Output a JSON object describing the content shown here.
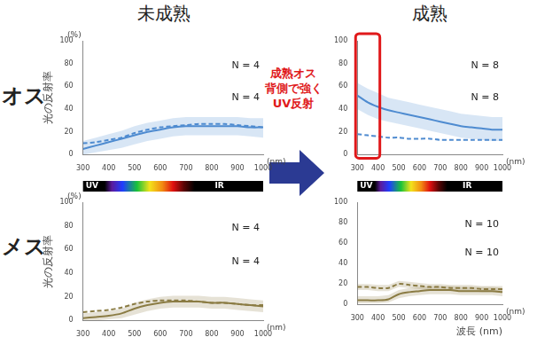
{
  "column_titles": [
    "未成熟",
    "成熟"
  ],
  "row_labels": [
    "オス",
    "メス"
  ],
  "annotation": [
    "成熟オス",
    "背側で強く",
    "UV反射"
  ],
  "chart_data": [
    {
      "type": "line",
      "ylabel": "光の反射率",
      "y_unit": "(%)",
      "x_unit": "(nm)",
      "x": [
        300,
        350,
        400,
        450,
        500,
        550,
        600,
        650,
        700,
        750,
        800,
        850,
        900,
        950,
        1000
      ],
      "xlim": [
        300,
        1000
      ],
      "xticks": [
        300,
        400,
        500,
        600,
        700,
        800,
        900,
        1000
      ],
      "ylim": [
        0,
        100
      ],
      "yticks": [
        0,
        20,
        40,
        60,
        80,
        100
      ],
      "grid": false,
      "annotations": [
        "N = 4",
        "N = 4"
      ],
      "series": [
        {
          "color": "#4f8bd0",
          "line_style": "solid",
          "values": [
            5,
            8,
            11,
            14,
            17,
            20,
            22,
            24,
            25,
            25,
            25,
            25,
            25,
            24,
            24
          ],
          "lower": [
            0,
            2,
            4,
            6,
            9,
            12,
            14,
            16,
            17,
            17,
            17,
            17,
            17,
            16,
            15
          ],
          "upper": [
            12,
            15,
            18,
            21,
            25,
            28,
            30,
            32,
            33,
            33,
            33,
            33,
            33,
            32,
            32
          ]
        },
        {
          "color": "#4f8bd0",
          "line_style": "dashed",
          "values": [
            10,
            11,
            13,
            15,
            19,
            22,
            24,
            25,
            26,
            27,
            27,
            27,
            26,
            25,
            24
          ]
        }
      ]
    },
    {
      "type": "line",
      "x_unit": "(nm)",
      "x": [
        300,
        350,
        400,
        450,
        500,
        550,
        600,
        650,
        700,
        750,
        800,
        850,
        900,
        950,
        1000
      ],
      "xlim": [
        300,
        1000
      ],
      "xticks": [
        300,
        400,
        500,
        600,
        700,
        800,
        900,
        1000
      ],
      "ylim": [
        0,
        100
      ],
      "yticks": [
        0,
        20,
        40,
        60,
        80,
        100
      ],
      "grid": false,
      "highlight": [
        300,
        400
      ],
      "annotations": [
        "N = 8",
        "N = 8"
      ],
      "series": [
        {
          "color": "#4f8bd0",
          "line_style": "solid",
          "values": [
            52,
            46,
            42,
            39,
            37,
            35,
            33,
            31,
            29,
            27,
            25,
            24,
            23,
            22,
            22
          ],
          "lower": [
            40,
            35,
            31,
            29,
            27,
            25,
            23,
            21,
            19,
            17,
            15,
            14,
            13,
            12,
            12
          ],
          "upper": [
            63,
            58,
            54,
            50,
            48,
            46,
            44,
            42,
            40,
            38,
            36,
            35,
            34,
            33,
            33
          ]
        },
        {
          "color": "#4f8bd0",
          "line_style": "dashed",
          "values": [
            18,
            17,
            16,
            15,
            15,
            14,
            14,
            14,
            13,
            13,
            13,
            13,
            13,
            13,
            13
          ]
        }
      ]
    },
    {
      "type": "line",
      "ylabel": "光の反射率",
      "y_unit": "(%)",
      "x_unit": "(nm)",
      "spectrum": [
        "UV",
        "IR"
      ],
      "x": [
        300,
        350,
        400,
        450,
        500,
        550,
        600,
        650,
        700,
        750,
        800,
        850,
        900,
        950,
        1000
      ],
      "xlim": [
        300,
        1000
      ],
      "xticks": [
        300,
        400,
        500,
        600,
        700,
        800,
        900,
        1000
      ],
      "ylim": [
        0,
        100
      ],
      "yticks": [
        0,
        20,
        40,
        60,
        80,
        100
      ],
      "grid": false,
      "annotations": [
        "N = 4",
        "N = 4"
      ],
      "series": [
        {
          "color": "#8b7d45",
          "line_style": "solid",
          "values": [
            2,
            3,
            4,
            6,
            10,
            13,
            15,
            16,
            16,
            16,
            15,
            15,
            14,
            13,
            12
          ],
          "lower": [
            0,
            0,
            1,
            2,
            5,
            8,
            10,
            11,
            11,
            11,
            10,
            10,
            9,
            8,
            7
          ],
          "upper": [
            6,
            7,
            8,
            10,
            15,
            18,
            20,
            21,
            21,
            21,
            20,
            20,
            19,
            18,
            17
          ]
        },
        {
          "color": "#8b7d45",
          "line_style": "dashed",
          "values": [
            7,
            8,
            9,
            11,
            14,
            16,
            17,
            17,
            17,
            16,
            15,
            15,
            14,
            13,
            13
          ]
        }
      ]
    },
    {
      "type": "line",
      "x_unit": "(nm)",
      "xlabel": "波長 (nm)",
      "spectrum": [
        "UV",
        "IR"
      ],
      "x": [
        300,
        350,
        400,
        450,
        500,
        550,
        600,
        650,
        700,
        750,
        800,
        850,
        900,
        950,
        1000
      ],
      "xlim": [
        300,
        1000
      ],
      "xticks": [
        300,
        400,
        500,
        600,
        700,
        800,
        900,
        1000
      ],
      "ylim": [
        0,
        100
      ],
      "yticks": [
        0,
        20,
        40,
        60,
        80,
        100
      ],
      "grid": false,
      "annotations": [
        "N = 10",
        "N = 10"
      ],
      "series": [
        {
          "color": "#8b7d45",
          "line_style": "solid",
          "values": [
            4,
            4,
            4,
            5,
            10,
            12,
            13,
            14,
            14,
            14,
            13,
            13,
            13,
            13,
            12
          ],
          "lower": [
            1,
            1,
            1,
            2,
            6,
            8,
            9,
            10,
            10,
            10,
            9,
            9,
            9,
            9,
            8
          ],
          "upper": [
            8,
            8,
            8,
            9,
            14,
            16,
            17,
            18,
            18,
            18,
            17,
            17,
            17,
            17,
            16
          ]
        },
        {
          "color": "#8b7d45",
          "line_style": "dashed",
          "values": [
            17,
            17,
            16,
            16,
            20,
            19,
            18,
            17,
            17,
            16,
            16,
            16,
            15,
            15,
            15
          ],
          "lower": [
            14,
            14,
            13,
            13,
            17,
            16,
            15,
            14,
            14,
            13,
            13,
            13,
            12,
            12,
            12
          ],
          "upper": [
            20,
            20,
            19,
            19,
            23,
            22,
            21,
            20,
            20,
            19,
            19,
            19,
            18,
            18,
            18
          ]
        }
      ]
    }
  ]
}
